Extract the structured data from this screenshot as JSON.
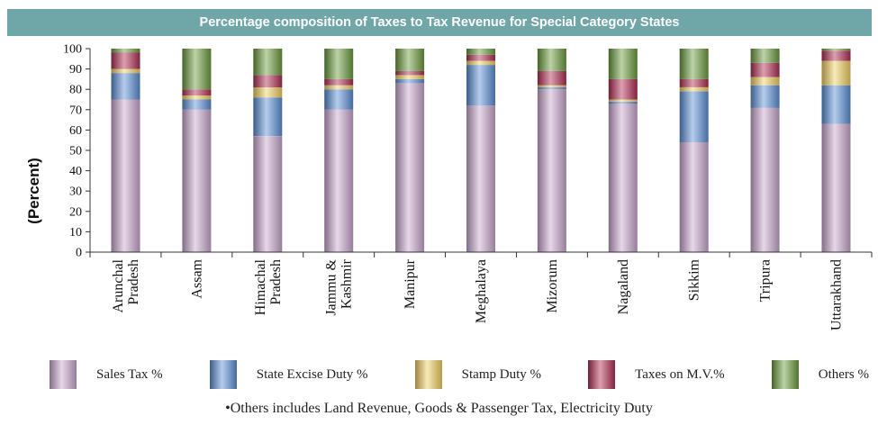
{
  "chart_data": {
    "type": "bar",
    "stacked": true,
    "title": "Percentage composition of Taxes to Tax Revenue for Special Category States",
    "xlabel": "",
    "ylabel": "(Percent)",
    "ylim": [
      0,
      100
    ],
    "yticks": [
      0,
      10,
      20,
      30,
      40,
      50,
      60,
      70,
      80,
      90,
      100
    ],
    "categories": [
      [
        "Arunchal",
        "Pradesh"
      ],
      [
        "Assam"
      ],
      [
        "Himachal",
        "Pradesh"
      ],
      [
        "Jammu &",
        "Kashmir"
      ],
      [
        "Manipur"
      ],
      [
        "Meghalaya"
      ],
      [
        "Mizorum"
      ],
      [
        "Nagaland"
      ],
      [
        "Sikkim"
      ],
      [
        "Tripura"
      ],
      [
        "Uttarakhand"
      ]
    ],
    "series": [
      {
        "name": "Sales Tax %",
        "color": "#c9a6cf",
        "values": [
          75,
          70,
          57,
          70,
          83,
          72,
          80,
          73,
          54,
          71,
          63
        ]
      },
      {
        "name": "State Excise Duty %",
        "color": "#5b8fd6",
        "values": [
          13,
          5,
          19,
          10,
          2,
          20,
          1,
          1,
          25,
          11,
          19
        ]
      },
      {
        "name": "Stamp Duty %",
        "color": "#f2d060",
        "values": [
          2,
          2,
          5,
          2,
          2,
          2,
          1,
          1,
          2,
          4,
          12
        ]
      },
      {
        "name": "Taxes on M.V.%",
        "color": "#b02c52",
        "values": [
          8,
          3,
          6,
          3,
          2,
          3,
          7,
          10,
          4,
          7,
          5
        ]
      },
      {
        "name": "Others %",
        "color": "#6a9a3c",
        "values": [
          2,
          20,
          13,
          15,
          11,
          3,
          11,
          15,
          15,
          7,
          1
        ]
      }
    ],
    "grid": false,
    "legend_position": "bottom",
    "footnote": "•Others includes Land Revenue, Goods & Passenger Tax, Electricity Duty"
  }
}
